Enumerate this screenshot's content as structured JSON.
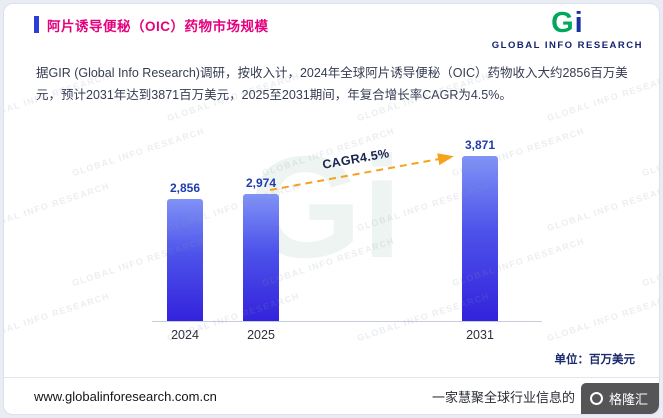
{
  "header": {
    "title": "阿片诱导便秘（OIC）药物市场规模",
    "accent_color": "#e5017d"
  },
  "logo": {
    "mark_g": "G",
    "mark_i": "i",
    "name": "GLOBAL INFO RESEARCH"
  },
  "description": "据GIR (Global Info Research)调研，按收入计，2024年全球阿片诱导便秘（OIC）药物收入大约2856百万美元，预计2031年达到3871百万美元，2025至2031期间，年复合增长率CAGR为4.5%。",
  "chart_data": {
    "type": "bar",
    "title": "阿片诱导便秘（OIC）药物市场规模",
    "categories": [
      "2024",
      "2025",
      "2031"
    ],
    "values": [
      2856,
      2974,
      3871
    ],
    "value_labels": [
      "2,856",
      "2,974",
      "3,871"
    ],
    "annotation": "CAGR4.5%",
    "unit_label": "单位：百万美元",
    "xlabel": "",
    "ylabel": "",
    "ylim": [
      0,
      4000
    ],
    "grid": false,
    "legend": false,
    "bar_color_top": "#8093f6",
    "bar_color_mid": "#4d53ea",
    "bar_color_bottom": "#3322dc",
    "value_label_color": "#1e3cae",
    "annotation_line_color": "#f6a21c"
  },
  "watermark": {
    "text": "GLOBAL INFO RESEARCH",
    "logo_text": "Gi",
    "badge": "格隆汇"
  },
  "footer": {
    "url": "www.globalinforesearch.com.cn",
    "tagline": "一家慧聚全球行业信息的"
  }
}
